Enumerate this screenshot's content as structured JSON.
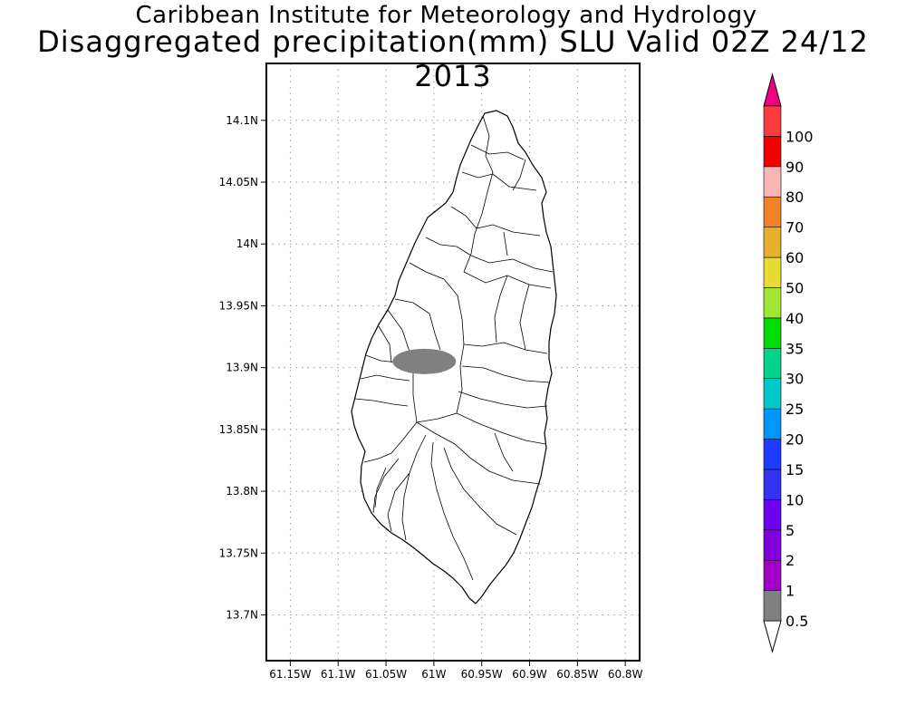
{
  "titles": {
    "line1": "Caribbean Institute for Meteorology and Hydrology",
    "line2": "Disaggregated precipitation(mm) SLU Valid 02Z 24/12 2013"
  },
  "map": {
    "lon_range": [
      -61.175,
      -60.785
    ],
    "lat_range": [
      13.663,
      14.146
    ],
    "lon_ticks": [
      {
        "value": -61.15,
        "label": "61.15W"
      },
      {
        "value": -61.1,
        "label": "61.1W"
      },
      {
        "value": -61.05,
        "label": "61.05W"
      },
      {
        "value": -61.0,
        "label": "61W"
      },
      {
        "value": -60.95,
        "label": "60.95W"
      },
      {
        "value": -60.9,
        "label": "60.9W"
      },
      {
        "value": -60.85,
        "label": "60.85W"
      },
      {
        "value": -60.8,
        "label": "60.8W"
      }
    ],
    "lat_ticks": [
      {
        "value": 14.1,
        "label": "14.1N"
      },
      {
        "value": 14.05,
        "label": "14.05N"
      },
      {
        "value": 14.0,
        "label": "14N"
      },
      {
        "value": 13.95,
        "label": "13.95N"
      },
      {
        "value": 13.9,
        "label": "13.9N"
      },
      {
        "value": 13.85,
        "label": "13.85N"
      },
      {
        "value": 13.8,
        "label": "13.8N"
      },
      {
        "value": 13.75,
        "label": "13.75N"
      },
      {
        "value": 13.7,
        "label": "13.7N"
      }
    ],
    "grid": "dotted",
    "island": "Saint Lucia",
    "rain_area": {
      "center_lon": -61.01,
      "center_lat": 13.905,
      "bin": "0.5-1",
      "color": "#808080"
    }
  },
  "colorbar": {
    "levels": [
      "0.5",
      "1",
      "2",
      "5",
      "10",
      "15",
      "20",
      "25",
      "30",
      "35",
      "40",
      "50",
      "60",
      "70",
      "80",
      "90",
      "100"
    ],
    "colors": [
      "#808080",
      "#a000c8",
      "#8200dc",
      "#6e00f0",
      "#3232f0",
      "#1e3cff",
      "#0096ff",
      "#00c8c8",
      "#00d28c",
      "#00dc00",
      "#a0e632",
      "#e6dc32",
      "#e6af2d",
      "#f08228",
      "#fab4b4",
      "#f00000",
      "#fa3c3c"
    ],
    "under_color": "#ffffff",
    "over_color": "#f00082"
  }
}
